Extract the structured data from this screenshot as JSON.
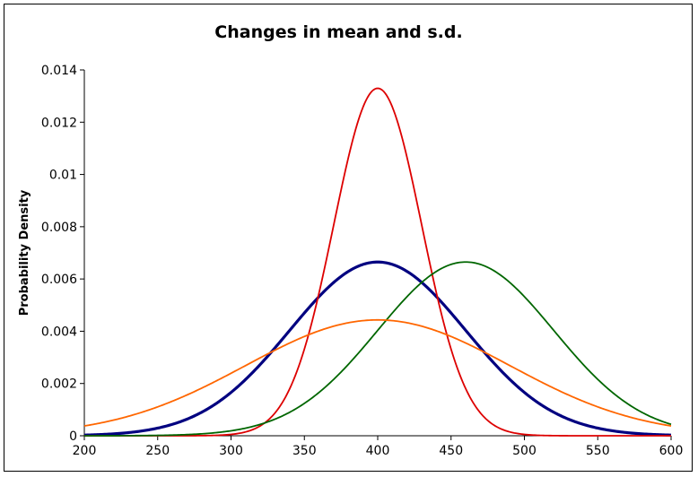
{
  "chart_data": {
    "type": "line",
    "title": "Changes in mean and s.d.",
    "xlabel": "",
    "ylabel": "Probability Density",
    "xlim": [
      200,
      600
    ],
    "ylim": [
      0,
      0.014
    ],
    "x_ticks": [
      "200",
      "250",
      "300",
      "350",
      "400",
      "450",
      "500",
      "550",
      "600"
    ],
    "y_ticks": [
      "0",
      "0.002",
      "0.004",
      "0.006",
      "0.008",
      "0.01",
      "0.012",
      "0.014"
    ],
    "grid": false,
    "legend": "none",
    "series": [
      {
        "mean": 400,
        "sd": 60,
        "color": "#000080",
        "line": "thick"
      },
      {
        "mean": 400,
        "sd": 30,
        "color": "#dd0000",
        "line": "normal"
      },
      {
        "mean": 460,
        "sd": 60,
        "color": "#006600",
        "line": "normal"
      },
      {
        "mean": 400,
        "sd": 90,
        "color": "#ff6600",
        "line": "normal"
      }
    ]
  }
}
